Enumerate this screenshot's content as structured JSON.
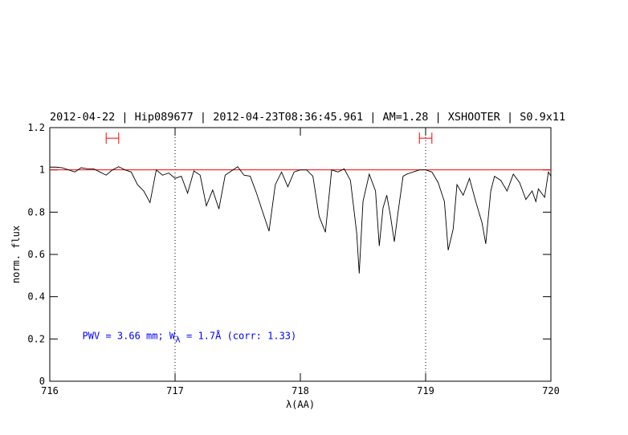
{
  "chart_data": {
    "type": "line",
    "title": "2012-04-22 | Hip089677 | 2012-04-23T08:36:45.961 | AM=1.28 | XSHOOTER | S0.9x11",
    "title_color": "#0000ff",
    "xlabel": "λ(AA)",
    "ylabel": "norm. flux",
    "annotation": {
      "parts": [
        "PWV = 3.66 mm; W",
        "λ",
        " = 1.7Å (corr: 1.33)"
      ],
      "color": "#0000ff",
      "x": 716.26,
      "y": 0.2
    },
    "xlim": [
      716,
      720
    ],
    "ylim": [
      0,
      1.2
    ],
    "xticks": [
      716,
      717,
      718,
      719,
      720
    ],
    "yticks": [
      0,
      0.2,
      0.4,
      0.6,
      0.8,
      1,
      1.2
    ],
    "hline": {
      "value": 1,
      "color": "#ff0000"
    },
    "vlines": [
      717,
      719
    ],
    "ranges": {
      "spans": [
        [
          716.45,
          716.55
        ],
        [
          718.95,
          719.05
        ]
      ],
      "y": 1.15,
      "color": "#ff0000"
    },
    "series": [
      {
        "color": "#000000",
        "x": [
          716.0,
          716.05,
          716.1,
          716.15,
          716.2,
          716.25,
          716.3,
          716.35,
          716.4,
          716.45,
          716.5,
          716.55,
          716.6,
          716.65,
          716.7,
          716.75,
          716.8,
          716.85,
          716.9,
          716.95,
          717.0,
          717.05,
          717.1,
          717.15,
          717.2,
          717.25,
          717.3,
          717.35,
          717.4,
          717.45,
          717.5,
          717.55,
          717.6,
          717.65,
          717.7,
          717.75,
          717.8,
          717.85,
          717.9,
          717.95,
          718.0,
          718.05,
          718.1,
          718.15,
          718.2,
          718.25,
          718.3,
          718.35,
          718.4,
          718.45,
          718.47,
          718.5,
          718.55,
          718.6,
          718.63,
          718.66,
          718.69,
          718.72,
          718.75,
          718.78,
          718.82,
          718.85,
          718.9,
          718.95,
          719.0,
          719.05,
          719.1,
          719.15,
          719.18,
          719.22,
          719.25,
          719.3,
          719.35,
          719.4,
          719.45,
          719.48,
          719.52,
          719.55,
          719.6,
          719.65,
          719.7,
          719.75,
          719.8,
          719.85,
          719.88,
          719.9,
          719.95,
          719.98,
          720.0
        ],
        "values": [
          1.013,
          1.013,
          1.01,
          1.0,
          0.99,
          1.01,
          1.005,
          1.005,
          0.99,
          0.975,
          1.0,
          1.015,
          1.0,
          0.99,
          0.93,
          0.9,
          0.845,
          1.0,
          0.975,
          0.985,
          0.96,
          0.97,
          0.89,
          0.995,
          0.975,
          0.83,
          0.905,
          0.815,
          0.975,
          0.995,
          1.015,
          0.975,
          0.97,
          0.89,
          0.8,
          0.71,
          0.93,
          0.99,
          0.92,
          0.99,
          1.0,
          1.0,
          0.97,
          0.78,
          0.705,
          1.0,
          0.99,
          1.005,
          0.95,
          0.7,
          0.51,
          0.85,
          0.98,
          0.9,
          0.64,
          0.82,
          0.88,
          0.78,
          0.66,
          0.8,
          0.97,
          0.98,
          0.99,
          1.0,
          1.0,
          0.99,
          0.94,
          0.85,
          0.62,
          0.72,
          0.93,
          0.88,
          0.96,
          0.85,
          0.75,
          0.65,
          0.9,
          0.97,
          0.95,
          0.9,
          0.98,
          0.94,
          0.86,
          0.9,
          0.85,
          0.91,
          0.87,
          0.99,
          0.97
        ]
      }
    ]
  }
}
